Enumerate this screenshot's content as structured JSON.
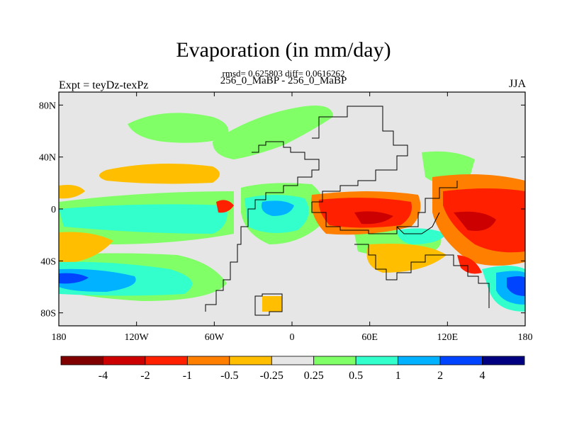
{
  "title": "Evaporation (in mm/day)",
  "stats_line": "rmsd= 0.625803 diff= 0.0616262",
  "subtitle": "256_0_MaBP - 256_0_MaBP",
  "left_label": "Expt = teyDz-texPz",
  "right_label": "JJA",
  "map": {
    "background_color": "#e6e6e6",
    "lon_range": [
      -180,
      180
    ],
    "lat_range": [
      -90,
      90
    ],
    "lon_ticks": [
      {
        "value": -180,
        "label": "180"
      },
      {
        "value": -120,
        "label": "120W"
      },
      {
        "value": -60,
        "label": "60W"
      },
      {
        "value": 0,
        "label": "0"
      },
      {
        "value": 60,
        "label": "60E"
      },
      {
        "value": 120,
        "label": "120E"
      },
      {
        "value": 180,
        "label": "180"
      }
    ],
    "lat_ticks": [
      {
        "value": 80,
        "label": "80N"
      },
      {
        "value": 40,
        "label": "40N"
      },
      {
        "value": 0,
        "label": "0"
      },
      {
        "value": -40,
        "label": "40S"
      },
      {
        "value": -80,
        "label": "80S"
      }
    ]
  },
  "colorbar": {
    "colors": [
      "#800000",
      "#cc0000",
      "#ff2000",
      "#ff7f00",
      "#ffbf00",
      "#e6e6e6",
      "#80ff66",
      "#33ffcc",
      "#00b2ff",
      "#0044ff",
      "#000080"
    ],
    "labels": [
      "-4",
      "-2",
      "-1",
      "-0.5",
      "-0.25",
      "0.25",
      "0.5",
      "1",
      "2",
      "4"
    ]
  }
}
